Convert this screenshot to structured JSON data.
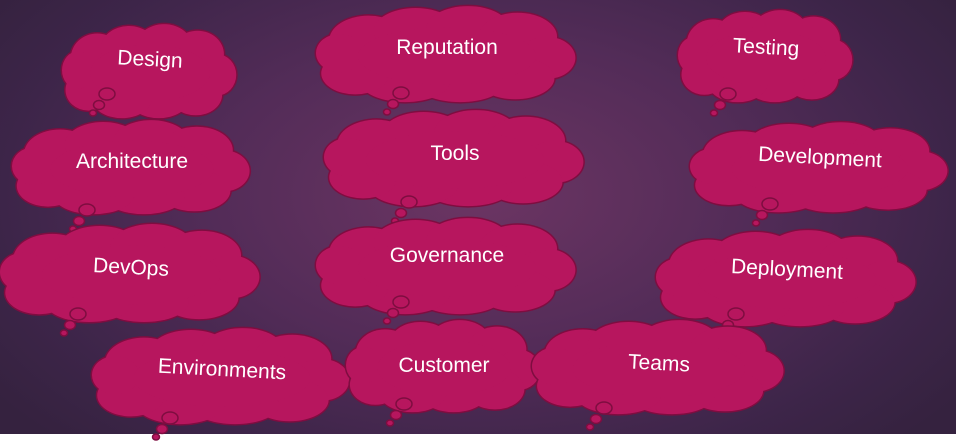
{
  "diagram": {
    "fill_color": "#b7165e",
    "stroke_color": "#7e0d40",
    "text_color": "#ffffff",
    "clouds": [
      {
        "label": "Design"
      },
      {
        "label": "Reputation"
      },
      {
        "label": "Testing"
      },
      {
        "label": "Architecture"
      },
      {
        "label": "Tools"
      },
      {
        "label": "Development"
      },
      {
        "label": "DevOps"
      },
      {
        "label": "Governance"
      },
      {
        "label": "Deployment"
      },
      {
        "label": "Environments"
      },
      {
        "label": "Customer"
      },
      {
        "label": "Teams"
      }
    ]
  }
}
